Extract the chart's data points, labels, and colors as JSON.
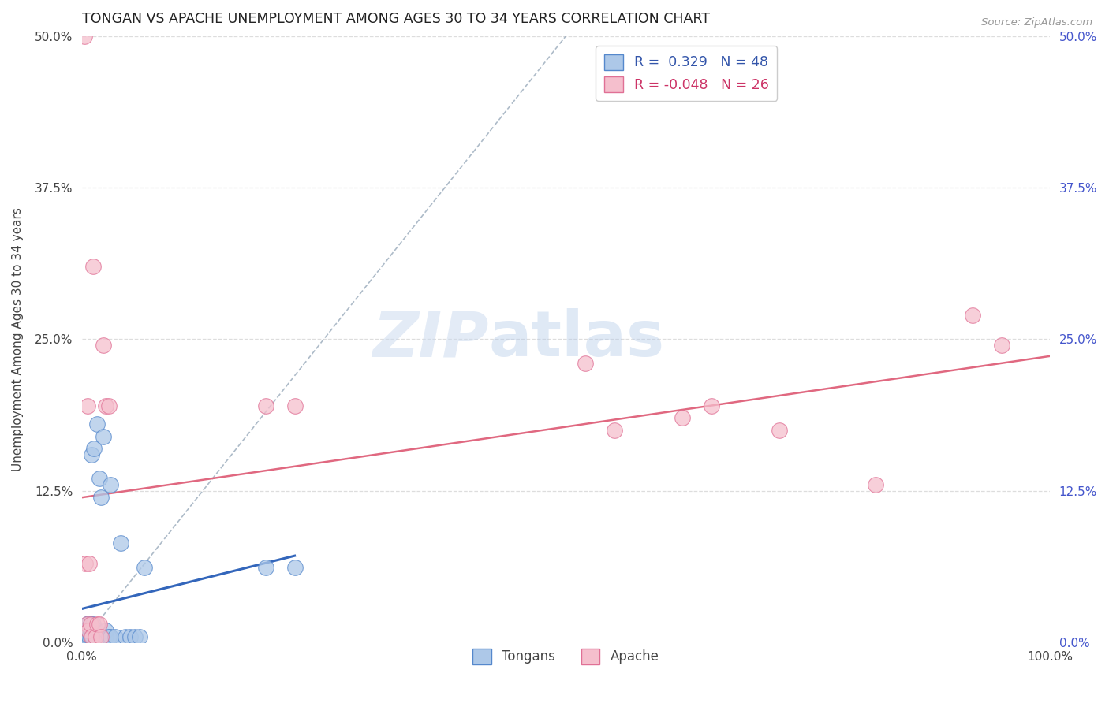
{
  "title": "TONGAN VS APACHE UNEMPLOYMENT AMONG AGES 30 TO 34 YEARS CORRELATION CHART",
  "source": "Source: ZipAtlas.com",
  "ylabel": "Unemployment Among Ages 30 to 34 years",
  "xlim": [
    0,
    1.0
  ],
  "ylim": [
    0,
    0.5
  ],
  "yticks": [
    0,
    0.125,
    0.25,
    0.375,
    0.5
  ],
  "ytick_labels": [
    "0.0%",
    "12.5%",
    "25.0%",
    "37.5%",
    "50.0%"
  ],
  "xtick_labels": [
    "0.0%",
    "100.0%"
  ],
  "xticks": [
    0,
    1.0
  ],
  "background_color": "#ffffff",
  "grid_color": "#dddddd",
  "tongan_face_color": "#adc8e8",
  "tongan_edge_color": "#5588cc",
  "apache_face_color": "#f5bfcd",
  "apache_edge_color": "#e07095",
  "tongan_R": 0.329,
  "tongan_N": 48,
  "apache_R": -0.048,
  "apache_N": 26,
  "tongan_line_color": "#3366bb",
  "apache_line_color": "#e06880",
  "diagonal_color": "#99aabb",
  "watermark_zip": "ZIP",
  "watermark_atlas": "atlas",
  "legend_R_color": "#3355aa",
  "legend_neg_R_color": "#cc3366",
  "tongan_x": [
    0.003,
    0.003,
    0.003,
    0.003,
    0.004,
    0.004,
    0.004,
    0.004,
    0.005,
    0.005,
    0.005,
    0.005,
    0.005,
    0.006,
    0.006,
    0.007,
    0.007,
    0.008,
    0.008,
    0.009,
    0.01,
    0.01,
    0.01,
    0.01,
    0.011,
    0.012,
    0.013,
    0.014,
    0.015,
    0.016,
    0.018,
    0.018,
    0.02,
    0.022,
    0.025,
    0.025,
    0.028,
    0.03,
    0.03,
    0.035,
    0.04,
    0.045,
    0.05,
    0.055,
    0.06,
    0.065,
    0.19,
    0.22
  ],
  "tongan_y": [
    0.002,
    0.003,
    0.005,
    0.008,
    0.002,
    0.004,
    0.007,
    0.012,
    0.001,
    0.003,
    0.005,
    0.006,
    0.01,
    0.002,
    0.015,
    0.003,
    0.016,
    0.005,
    0.013,
    0.005,
    0.006,
    0.01,
    0.015,
    0.155,
    0.005,
    0.015,
    0.16,
    0.005,
    0.01,
    0.18,
    0.008,
    0.135,
    0.12,
    0.17,
    0.005,
    0.01,
    0.005,
    0.005,
    0.13,
    0.005,
    0.082,
    0.005,
    0.005,
    0.005,
    0.005,
    0.062,
    0.062,
    0.062
  ],
  "apache_x": [
    0.003,
    0.004,
    0.005,
    0.006,
    0.007,
    0.008,
    0.009,
    0.01,
    0.012,
    0.014,
    0.016,
    0.018,
    0.02,
    0.022,
    0.025,
    0.028,
    0.19,
    0.22,
    0.52,
    0.55,
    0.62,
    0.65,
    0.72,
    0.82,
    0.92,
    0.95
  ],
  "apache_y": [
    0.5,
    0.065,
    0.015,
    0.195,
    0.01,
    0.065,
    0.015,
    0.005,
    0.31,
    0.005,
    0.015,
    0.015,
    0.005,
    0.245,
    0.195,
    0.195,
    0.195,
    0.195,
    0.23,
    0.175,
    0.185,
    0.195,
    0.175,
    0.13,
    0.27,
    0.245
  ]
}
